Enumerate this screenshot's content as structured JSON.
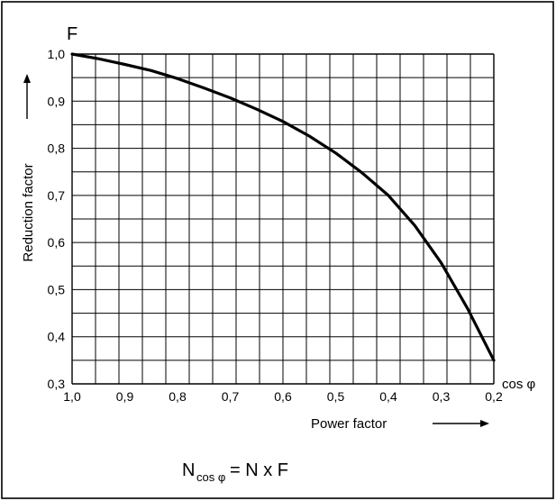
{
  "chart_data": {
    "type": "line",
    "y_symbol": "F",
    "ylabel": "Reduction factor",
    "xlabel": "Power factor",
    "x_symbol": "cos φ",
    "x_reversed": true,
    "xlim": [
      1.0,
      0.2
    ],
    "ylim": [
      0.3,
      1.0
    ],
    "x_ticks": [
      "1,0",
      "0,9",
      "0,8",
      "0,7",
      "0,6",
      "0,5",
      "0,4",
      "0,3",
      "0,2"
    ],
    "y_ticks": [
      "0,3",
      "0,4",
      "0,5",
      "0,6",
      "0,7",
      "0,8",
      "0,9",
      "1,0"
    ],
    "grid": true,
    "series": [
      {
        "x": [
          1.0,
          0.95,
          0.9,
          0.85,
          0.8,
          0.75,
          0.7,
          0.65,
          0.6,
          0.55,
          0.5,
          0.45,
          0.4,
          0.35,
          0.3,
          0.25,
          0.2
        ],
        "values": [
          1.0,
          0.99,
          0.978,
          0.965,
          0.948,
          0.928,
          0.907,
          0.883,
          0.857,
          0.826,
          0.79,
          0.748,
          0.7,
          0.636,
          0.557,
          0.46,
          0.35
        ]
      }
    ]
  },
  "formula": {
    "lhs_main": "N",
    "lhs_sub": "cos φ",
    "rhs": "= N x F"
  },
  "colors": {
    "curve": "#000000",
    "grid": "#000000",
    "frame": "#000000"
  }
}
